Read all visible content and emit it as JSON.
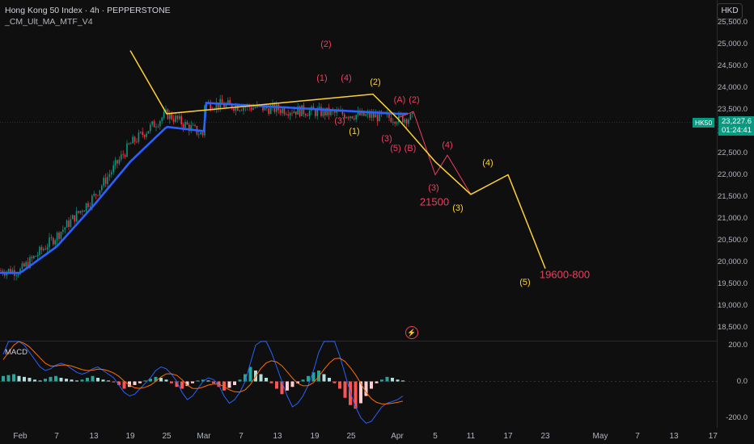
{
  "header": {
    "title": "Hong Kong 50 Index · 4h · PEPPERSTONE",
    "indicator": "_CM_Ult_MA_MTF_V4"
  },
  "currency_button": "HKD",
  "price_tag": {
    "symbol": "HK50",
    "price": "23,227.6",
    "countdown": "01:24:41"
  },
  "macd_label": "MACD",
  "colors": {
    "background": "#0f0f0f",
    "up_candle": "#089981",
    "down_candle": "#f23645",
    "ma_line": "#2962ff",
    "wave_yellow": "#ffd232",
    "wave_pink": "#ef3e5f",
    "macd_line": "#2962ff",
    "signal_line": "#ff6d00"
  },
  "icons": [
    "lightning-icon"
  ],
  "chart_data": [
    {
      "type": "candlestick",
      "title": "Hong Kong 50 Index · 4h · PEPPERSTONE",
      "y_axis_labels": [
        "25,500.0",
        "25,000.0",
        "24,500.0",
        "24,000.0",
        "23,500.0",
        "23,000.0",
        "22,500.0",
        "22,000.0",
        "21,500.0",
        "21,000.0",
        "20,500.0",
        "20,000.0",
        "19,500.0",
        "19,000.0",
        "18,500.0"
      ],
      "ylim": [
        18300,
        25650
      ],
      "x_axis_labels": [
        "Feb",
        "7",
        "13",
        "19",
        "25",
        "Mar",
        "7",
        "13",
        "19",
        "25",
        "Apr",
        "5",
        "11",
        "17",
        "23",
        "May",
        "7",
        "13",
        "17"
      ],
      "last_price": 23227.6,
      "close_path": [
        [
          "Feb",
          19800
        ],
        [
          "7",
          20600
        ],
        [
          "13",
          21500
        ],
        [
          "19",
          22700
        ],
        [
          "25",
          23400
        ],
        [
          "Mar",
          22900
        ],
        [
          "7",
          24100
        ],
        [
          "13",
          23600
        ],
        [
          "19",
          24300
        ],
        [
          "25",
          23700
        ],
        [
          "Apr",
          23300
        ]
      ],
      "moving_average": {
        "name": "_CM_Ult_MA_MTF_V4",
        "points": [
          [
            "Feb",
            19750
          ],
          [
            "7",
            20350
          ],
          [
            "13",
            21300
          ],
          [
            "19",
            22300
          ],
          [
            "25",
            23100
          ],
          [
            "Mar",
            23000
          ],
          [
            "7",
            23600
          ],
          [
            "13",
            23600
          ],
          [
            "19",
            24200
          ],
          [
            "25",
            23700
          ],
          [
            "Apr",
            23400
          ]
        ]
      },
      "yellow_wave": {
        "points": [
          [
            "19",
            24850
          ],
          [
            "25",
            23400
          ],
          [
            "Mar 28",
            23850
          ],
          [
            "Apr",
            23300
          ],
          [
            "5",
            22300
          ],
          [
            "11",
            21550
          ],
          [
            "17",
            22000
          ],
          [
            "23",
            19850
          ]
        ],
        "labels": [
          "(1)",
          "(2)",
          "(3)",
          "(4)",
          "(5)"
        ]
      },
      "pink_wave": {
        "points": [
          [
            "Apr",
            23300
          ],
          [
            "Apr 2",
            23450
          ],
          [
            "5",
            22000
          ],
          [
            "8",
            22450
          ],
          [
            "11",
            21550
          ]
        ],
        "labels": [
          "(2)",
          "(1)",
          "(4)",
          "(3)",
          "(A)",
          "(2)",
          "(3)",
          "(5)",
          "(B)",
          "(4)",
          "(3)"
        ]
      },
      "annotations": [
        "21500",
        "19600-800"
      ]
    },
    {
      "type": "histogram",
      "title": "MACD",
      "y_axis_labels": [
        "200.0",
        "0.0",
        "-200.0"
      ],
      "ylim": [
        -260,
        260
      ],
      "histogram": [
        30,
        35,
        40,
        30,
        25,
        20,
        10,
        5,
        15,
        25,
        30,
        20,
        15,
        10,
        5,
        10,
        20,
        30,
        20,
        10,
        5,
        -5,
        -20,
        -40,
        -30,
        -20,
        -10,
        5,
        15,
        25,
        20,
        10,
        -10,
        -30,
        -40,
        -25,
        -10,
        5,
        10,
        5,
        -10,
        -30,
        -50,
        -35,
        -20,
        10,
        40,
        80,
        60,
        40,
        20,
        -10,
        -40,
        -70,
        -50,
        -30,
        -10,
        10,
        30,
        50,
        60,
        40,
        20,
        -10,
        -40,
        -90,
        -130,
        -150,
        -120,
        -80,
        -40,
        -10,
        10,
        25,
        20,
        10,
        5
      ],
      "macd": [
        150,
        220,
        260,
        240,
        200,
        160,
        120,
        80,
        60,
        70,
        90,
        100,
        90,
        70,
        50,
        40,
        50,
        70,
        80,
        60,
        40,
        20,
        -20,
        -60,
        -80,
        -70,
        -40,
        -10,
        20,
        60,
        80,
        70,
        40,
        0,
        -60,
        -100,
        -80,
        -40,
        0,
        20,
        10,
        -20,
        -80,
        -120,
        -100,
        -60,
        0,
        100,
        200,
        250,
        220,
        160,
        80,
        0,
        -80,
        -140,
        -120,
        -80,
        -20,
        60,
        160,
        220,
        240,
        220,
        140,
        40,
        -60,
        -140,
        -200,
        -230,
        -220,
        -180,
        -140,
        -120,
        -110,
        -100,
        -80
      ],
      "signal": [
        120,
        160,
        200,
        220,
        210,
        190,
        160,
        130,
        100,
        85,
        85,
        90,
        90,
        85,
        75,
        65,
        60,
        62,
        68,
        66,
        58,
        46,
        28,
        2,
        -20,
        -35,
        -38,
        -32,
        -20,
        0,
        25,
        42,
        42,
        34,
        10,
        -20,
        -38,
        -39,
        -31,
        -20,
        -14,
        -15,
        -28,
        -46,
        -57,
        -58,
        -46,
        -17,
        27,
        72,
        102,
        114,
        107,
        86,
        53,
        18,
        -10,
        -24,
        -23,
        -6,
        27,
        66,
        101,
        125,
        128,
        110,
        76,
        37,
        -11,
        -60,
        -95,
        -115,
        -124,
        -123,
        -120,
        -115,
        -108
      ]
    }
  ]
}
